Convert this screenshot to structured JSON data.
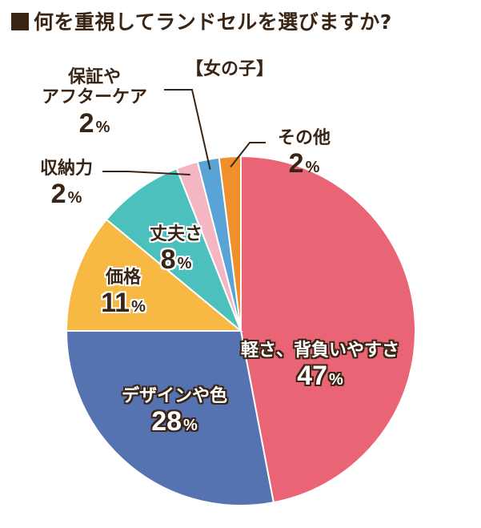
{
  "chart_data": {
    "type": "pie",
    "title": "何を重視してランドセルを選びますか?",
    "subtitle": "【女の子】",
    "unit": "%",
    "slices": [
      {
        "label": "軽さ、背負いやすさ",
        "value": 47,
        "color": "#e96474"
      },
      {
        "label": "デザインや色",
        "value": 28,
        "color": "#5572b1"
      },
      {
        "label": "価格",
        "value": 11,
        "color": "#f7b943"
      },
      {
        "label": "丈夫さ",
        "value": 8,
        "color": "#4bc0bd"
      },
      {
        "label": "収納力",
        "value": 2,
        "color": "#f4b6c2"
      },
      {
        "label": "保証やアフターケア",
        "value": 2,
        "color": "#5aa3d6"
      },
      {
        "label": "その他",
        "value": 2,
        "color": "#f0902d"
      }
    ]
  },
  "labels": {
    "s0_name": "軽さ、背負いやすさ",
    "s0_pct": "47",
    "s1_name": "デザインや色",
    "s1_pct": "28",
    "s2_name": "価格",
    "s2_pct": "11",
    "s3_name": "丈夫さ",
    "s3_pct": "8",
    "s4_name": "収納力",
    "s4_pct": "2",
    "s5_name_1": "保証や",
    "s5_name_2": "アフターケア",
    "s5_pct": "2",
    "s6_name": "その他",
    "s6_pct": "2",
    "unit": "%"
  },
  "colors": {
    "text": "#3a2515",
    "leader": "#3a2515"
  }
}
